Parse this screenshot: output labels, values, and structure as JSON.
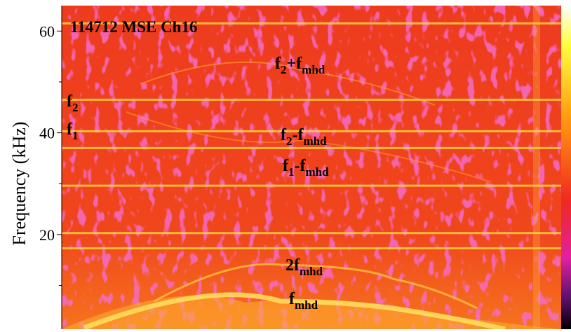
{
  "chart_data": {
    "type": "spectrogram",
    "title": "114712 MSE Ch16",
    "ylabel": "Frequency (kHz)",
    "ylim": [
      1.4,
      65
    ],
    "yticks": [
      20,
      40,
      60
    ],
    "yminorticks": [
      10,
      30,
      50
    ],
    "spectral_lines": [
      61.5,
      46.5,
      40.3,
      37,
      29.6,
      20.3,
      17.3
    ],
    "annotations": [
      {
        "segments": [
          "f",
          "2",
          "+f",
          "mhd"
        ]
      },
      {
        "segments": [
          "f",
          "2"
        ]
      },
      {
        "segments": [
          "f",
          "1"
        ]
      },
      {
        "segments": [
          "f",
          "2",
          "-f",
          "mhd"
        ]
      },
      {
        "segments": [
          "f",
          "1",
          "-f",
          "mhd"
        ]
      },
      {
        "segments": [
          "2f",
          "mhd"
        ]
      },
      {
        "segments": [
          "f",
          "mhd"
        ]
      }
    ]
  }
}
